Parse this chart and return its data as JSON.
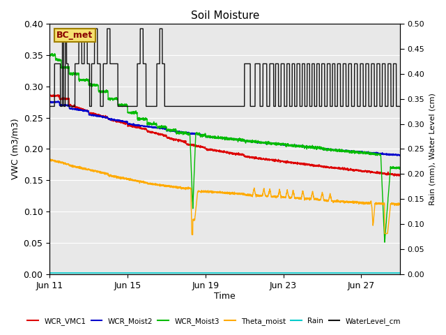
{
  "title": "Soil Moisture",
  "xlabel": "Time",
  "ylabel_left": "VWC (m3/m3)",
  "ylabel_right": "Rain (mm), Water Level (cm)",
  "ylim_left": [
    0.0,
    0.4
  ],
  "ylim_right": [
    0.0,
    0.5
  ],
  "yticks_left": [
    0.0,
    0.05,
    0.1,
    0.15,
    0.2,
    0.25,
    0.3,
    0.35,
    0.4
  ],
  "yticks_right": [
    0.0,
    0.05,
    0.1,
    0.15,
    0.2,
    0.25,
    0.3,
    0.35,
    0.4,
    0.45,
    0.5
  ],
  "bg_color": "#e8e8e8",
  "annotation_label": "BC_met",
  "xtick_days": [
    11,
    15,
    19,
    23,
    27
  ],
  "xtick_labels": [
    "Jun 11",
    "Jun 15",
    "Jun 19",
    "Jun 23",
    "Jun 27"
  ],
  "legend_labels": [
    "WCR_VMC1",
    "WCR_Moist2",
    "WCR_Moist3",
    "Theta_moist",
    "Rain",
    "WaterLevel_cm"
  ],
  "legend_colors": [
    "#dd0000",
    "#0000cc",
    "#00bb00",
    "#ffaa00",
    "#00cccc",
    "#111111"
  ]
}
